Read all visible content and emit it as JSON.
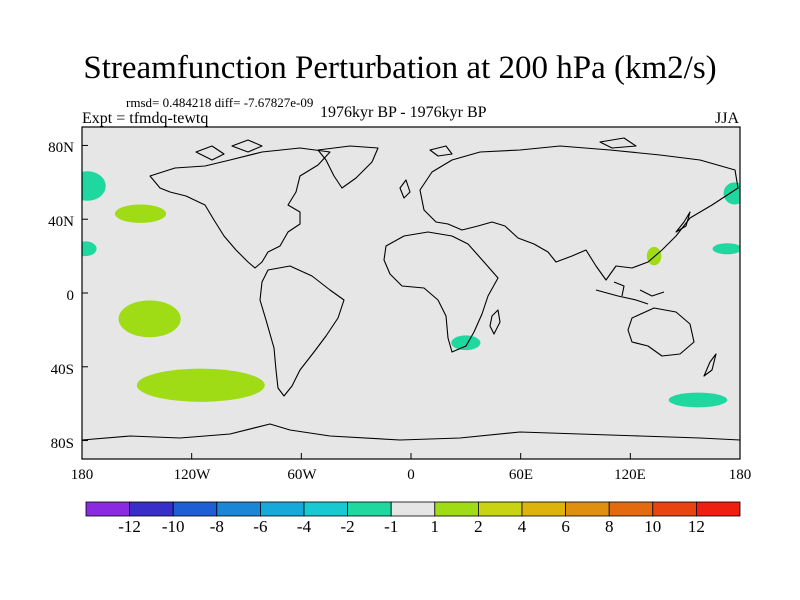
{
  "title": "Streamfunction Perturbation at 200 hPa (km2/s)",
  "stats": "rmsd= 0.484218 diff= -7.67827e-09",
  "expt": "Expt = tfmdq-tewtq",
  "period": "1976kyr BP - 1976kyr BP",
  "season": "JJA",
  "y_ticks": [
    "80N",
    "40N",
    "0",
    "40S",
    "80S"
  ],
  "x_ticks": [
    "180",
    "120W",
    "60W",
    "0",
    "60E",
    "120E",
    "180"
  ],
  "colorbar": {
    "colors": [
      "#8a2be2",
      "#3a2ec8",
      "#1f5fd6",
      "#1a86d8",
      "#17a9d9",
      "#18c9d2",
      "#1ed8a0",
      "#e6e6e6",
      "#a0dc16",
      "#c8d412",
      "#dcb40c",
      "#e09010",
      "#e46a10",
      "#e84410",
      "#ee1e10"
    ],
    "labels": [
      "-12",
      "-10",
      "-8",
      "-6",
      "-4",
      "-2",
      "-1",
      "1",
      "2",
      "4",
      "6",
      "8",
      "10",
      "12"
    ]
  },
  "chart_data": {
    "type": "map",
    "projection": "cylindrical equidistant",
    "lon_range": [
      -180,
      180
    ],
    "lat_range": [
      -90,
      90
    ],
    "background_value_class": "-1 to 1",
    "anomalies": [
      {
        "name": "north-pacific-positive",
        "class": "1 to 2",
        "lon": -148,
        "lat": 43
      },
      {
        "name": "tropical-pacific-positive",
        "class": "1 to 2",
        "lon": -143,
        "lat": -14
      },
      {
        "name": "south-pacific-positive",
        "class": "1 to 2",
        "lon": -115,
        "lat": -50
      },
      {
        "name": "west-pacific-positive",
        "class": "1 to 2",
        "lon": 133,
        "lat": 20
      },
      {
        "name": "southern-africa-negative",
        "class": "-2 to -1",
        "lon": 30,
        "lat": -27
      },
      {
        "name": "dateline-arctic-negative",
        "class": "-2 to -1",
        "lon": -177,
        "lat": 58
      },
      {
        "name": "dateline-subtropical-negative",
        "class": "-2 to -1",
        "lon": -178,
        "lat": 24
      },
      {
        "name": "kamchatka-negative",
        "class": "-2 to -1",
        "lon": 177,
        "lat": 54
      },
      {
        "name": "central-pacific-negative",
        "class": "-2 to -1",
        "lon": 173,
        "lat": 24
      },
      {
        "name": "southern-ocean-negative",
        "class": "-2 to -1",
        "lon": 157,
        "lat": -58
      }
    ]
  }
}
